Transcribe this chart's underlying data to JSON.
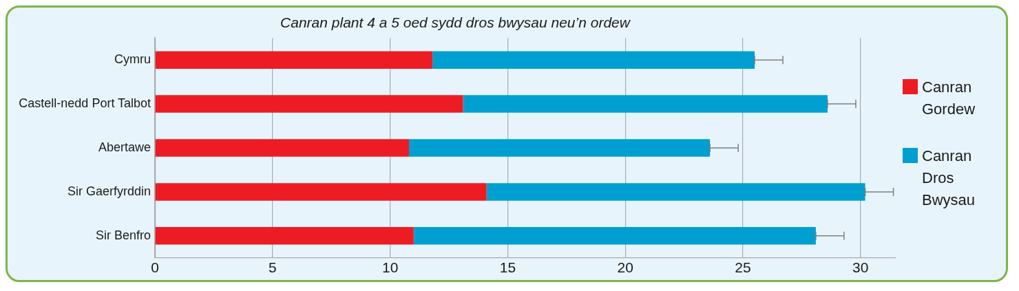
{
  "chart_data": {
    "type": "bar",
    "orientation": "horizontal",
    "stacked": true,
    "title": "Canran plant 4 a 5 oed sydd dros bwysau neu’n ordew",
    "categories": [
      "Cymru",
      "Castell-nedd Port Talbot",
      "Abertawe",
      "Sir Gaerfyrddin",
      "Sir Benfro"
    ],
    "series": [
      {
        "name": "Canran Gordew",
        "color": "#ed1c24",
        "values": [
          11.8,
          13.1,
          10.8,
          14.1,
          11.0
        ]
      },
      {
        "name": "Canran Dros Bwysau",
        "color": "#009fd1",
        "values": [
          13.7,
          15.5,
          12.8,
          16.1,
          17.1
        ],
        "errors": [
          [
            25.5,
            26.7
          ],
          [
            28.6,
            29.8
          ],
          [
            23.6,
            24.8
          ],
          [
            30.2,
            31.4
          ],
          [
            28.1,
            29.3
          ]
        ]
      }
    ],
    "xlim": [
      0,
      31.5
    ],
    "xticks": [
      0,
      5,
      10,
      15,
      20,
      25,
      30
    ],
    "grid": "x",
    "legend": "right"
  }
}
